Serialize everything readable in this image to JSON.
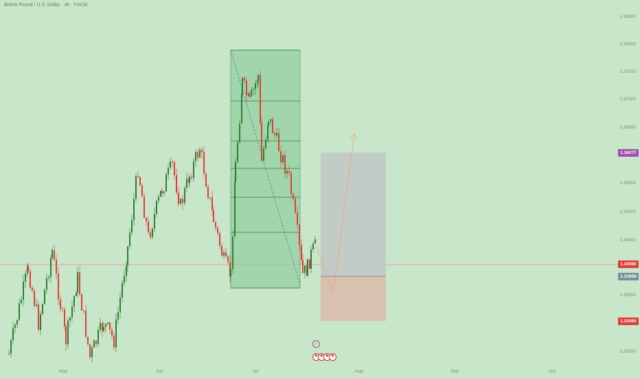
{
  "title": "British Pound / U.S. Dollar · 4h · FXCM",
  "price_ticks": [
    "1.38500",
    "1.38000",
    "1.37500",
    "1.37000",
    "1.36500",
    "1.35500",
    "1.35000",
    "1.34500",
    "1.33500",
    "1.32500"
  ],
  "months": [
    "May",
    "Jun",
    "Jul",
    "Aug",
    "Sep",
    "Oct"
  ],
  "tags": {
    "target": "1.36077",
    "current": "1.34080",
    "entry": "1.33858",
    "stop": "1.33065"
  },
  "colors": {
    "background": "#c8e6c9",
    "up": "#2e7d32",
    "down": "#e53935",
    "target_tag": "#9c4fb0",
    "current_tag": "#e53935",
    "entry_tag": "#78909c",
    "stop_tag": "#e53935"
  },
  "events": [
    "lightning-icon",
    "flag-icon-1",
    "flag-icon-2",
    "flag-icon-3",
    "flag-icon-4"
  ]
}
